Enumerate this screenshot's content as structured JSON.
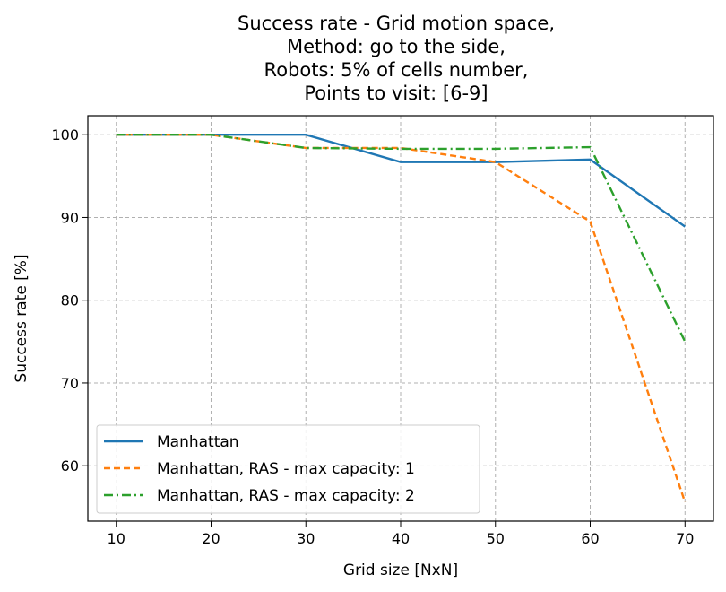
{
  "chart_data": {
    "type": "line",
    "title_lines": [
      "Success rate - Grid motion space,",
      "Method: go to the side,",
      "Robots: 5% of cells number,",
      "Points to visit: [6-9]"
    ],
    "xlabel": "Grid size [NxN]",
    "ylabel": "Success rate [%]",
    "x": [
      10,
      20,
      30,
      40,
      50,
      60,
      70
    ],
    "x_ticks": [
      10,
      20,
      30,
      40,
      50,
      60,
      70
    ],
    "y_ticks": [
      60,
      70,
      80,
      90,
      100
    ],
    "xlim": [
      7,
      73
    ],
    "ylim": [
      53.3,
      102.3
    ],
    "grid": true,
    "legend_position": "lower-left",
    "series": [
      {
        "name": "Manhattan",
        "values": [
          100,
          100,
          100,
          96.7,
          96.7,
          97.0,
          88.9
        ],
        "color": "#1f77b4",
        "style": "solid"
      },
      {
        "name": "Manhattan, RAS - max capacity: 1",
        "values": [
          100,
          100,
          98.4,
          98.4,
          96.7,
          89.5,
          55.6
        ],
        "color": "#ff7f0e",
        "style": "dashed"
      },
      {
        "name": "Manhattan, RAS - max capacity: 2",
        "values": [
          100,
          100,
          98.4,
          98.3,
          98.3,
          98.5,
          75.0
        ],
        "color": "#2ca02c",
        "style": "dashdot"
      }
    ]
  }
}
